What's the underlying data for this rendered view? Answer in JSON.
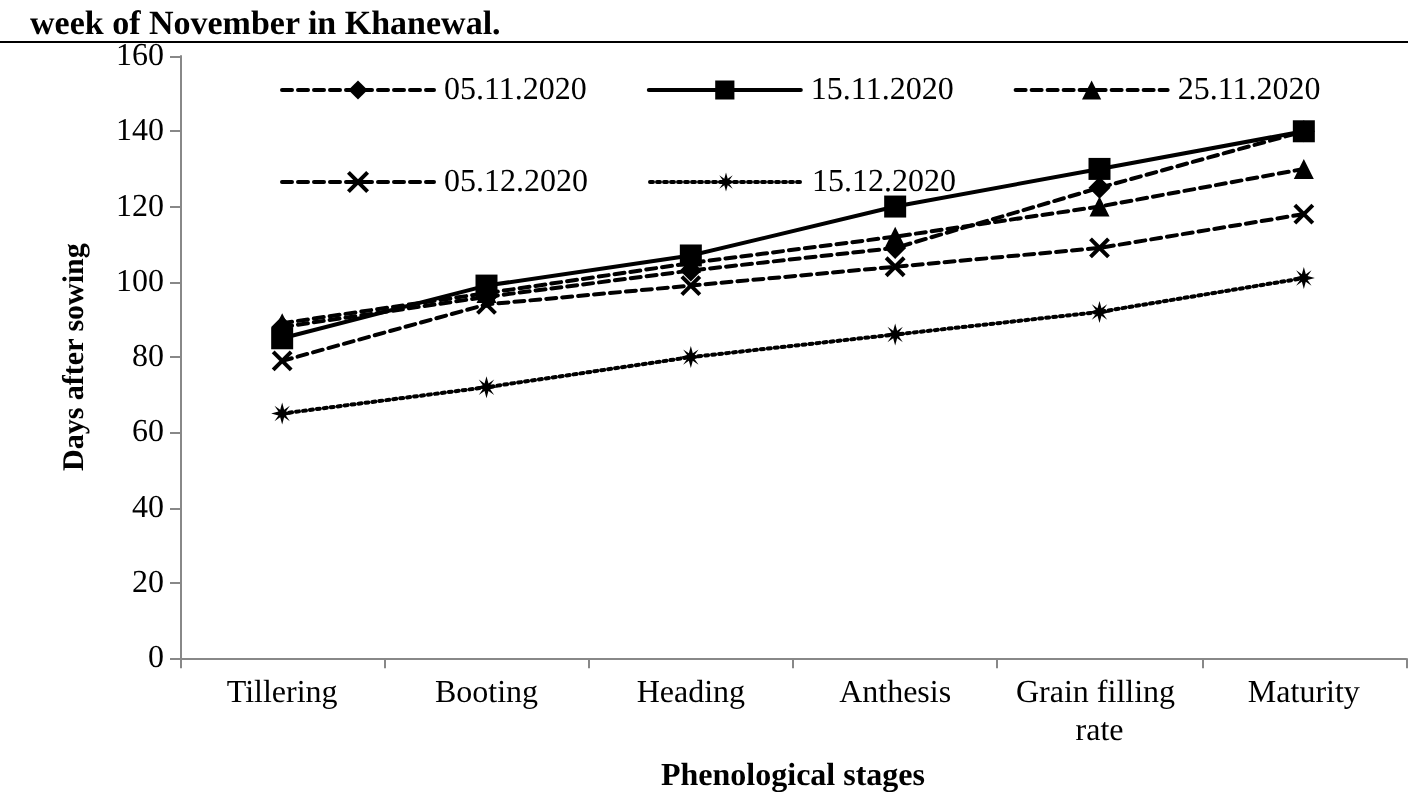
{
  "chart_data": {
    "type": "line",
    "title": "week of November in Khanewal.",
    "xlabel": "Phenological stages",
    "ylabel": "Days after sowing",
    "categories": [
      "Tillering",
      "Booting",
      "Heading",
      "Anthesis",
      "Grain filling rate",
      "Maturity"
    ],
    "series": [
      {
        "name": "05.11.2020",
        "color": "#000000",
        "marker": "diamond",
        "line_style": "dashed",
        "values": [
          88,
          96,
          103,
          109,
          125,
          140
        ]
      },
      {
        "name": "15.11.2020",
        "color": "#000000",
        "marker": "square",
        "line_style": "solid",
        "values": [
          85,
          99,
          107,
          120,
          130,
          140
        ]
      },
      {
        "name": "25.11.2020",
        "color": "#000000",
        "marker": "triangle",
        "line_style": "dashed",
        "values": [
          89,
          97,
          105,
          112,
          120,
          130
        ]
      },
      {
        "name": "05.12.2020",
        "color": "#000000",
        "marker": "cross",
        "line_style": "dashed",
        "values": [
          79,
          94,
          99,
          104,
          109,
          118
        ]
      },
      {
        "name": "15.12.2020",
        "color": "#000000",
        "marker": "star",
        "line_style": "dotted",
        "values": [
          65,
          72,
          80,
          86,
          92,
          101
        ]
      }
    ],
    "ylim": [
      0,
      160
    ],
    "yticks": [
      0,
      20,
      40,
      60,
      80,
      100,
      120,
      140,
      160
    ],
    "grid": false,
    "legend": "top"
  }
}
